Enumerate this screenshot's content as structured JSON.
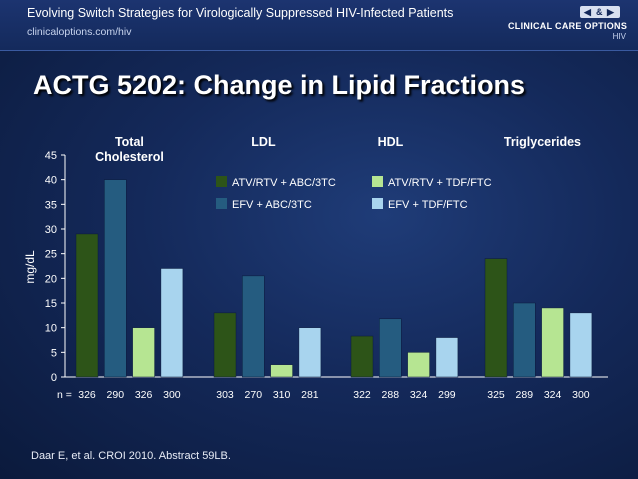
{
  "header": {
    "title": "Evolving Switch Strategies for Virologically Suppressed HIV-Infected Patients",
    "url": "clinicaloptions.com/hiv",
    "logo_main": "CLINICAL CARE OPTIONS",
    "logo_sub": "HIV",
    "logo_icons": "◀ & ▶"
  },
  "slide_title": "ACTG 5202: Change in Lipid Fractions",
  "citation": "Daar E, et al. CROI 2010. Abstract 59LB.",
  "colors": {
    "ATV/RTV + ABC/3TC": "#2d5418",
    "EFV + ABC/3TC": "#255c80",
    "ATV/RTV + TDF/FTC": "#b6e592",
    "EFV + TDF/FTC": "#a8d4ee"
  },
  "chart_data": {
    "type": "bar",
    "categories": [
      "Total Cholesterol",
      "LDL",
      "HDL",
      "Triglycerides"
    ],
    "category_labels": [
      [
        "Total",
        "Cholesterol"
      ],
      [
        "LDL"
      ],
      [
        "HDL"
      ],
      [
        "Triglycerides"
      ]
    ],
    "ylabel": "mg/dL",
    "xlabel": "",
    "ylim": [
      0,
      45
    ],
    "yticks": [
      0,
      5,
      10,
      15,
      20,
      25,
      30,
      35,
      40,
      45
    ],
    "grid": false,
    "legend_position": "top-center",
    "series": [
      {
        "name": "ATV/RTV + ABC/3TC",
        "values": [
          29,
          13,
          8.3,
          24
        ]
      },
      {
        "name": "EFV + ABC/3TC",
        "values": [
          40,
          20.5,
          11.8,
          15
        ]
      },
      {
        "name": "ATV/RTV + TDF/FTC",
        "values": [
          10,
          2.5,
          5,
          14
        ]
      },
      {
        "name": "EFV + TDF/FTC",
        "values": [
          22,
          10,
          8,
          13
        ]
      }
    ],
    "n_prefix": "n =",
    "n_values": [
      [
        "326",
        "290",
        "326",
        "300"
      ],
      [
        "303",
        "270",
        "310",
        "281"
      ],
      [
        "322",
        "288",
        "324",
        "299"
      ],
      [
        "325",
        "289",
        "324",
        "300"
      ]
    ]
  }
}
